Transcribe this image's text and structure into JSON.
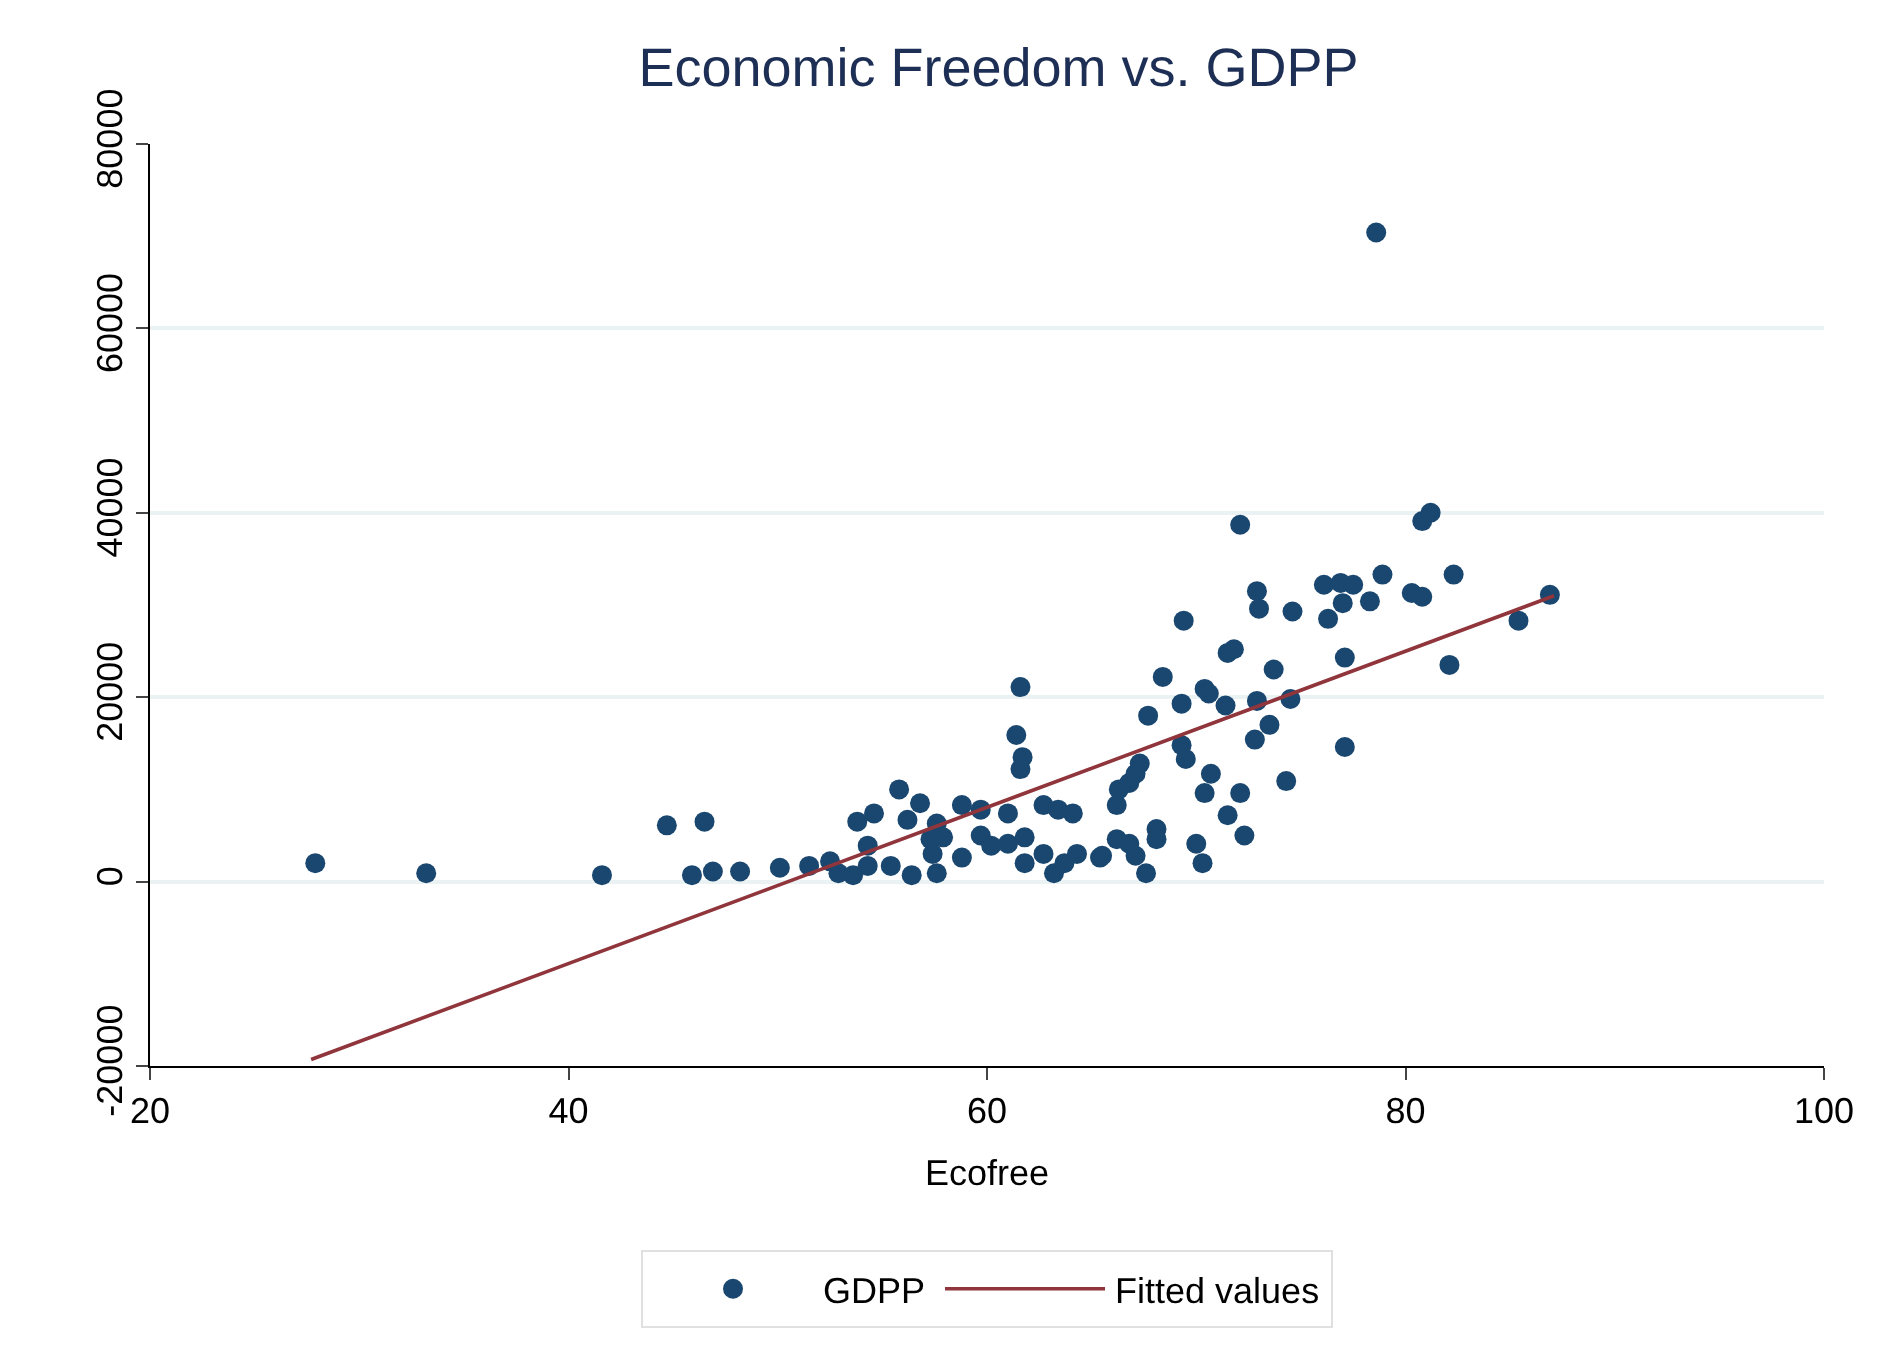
{
  "chart_data": {
    "type": "scatter",
    "title": "Economic Freedom vs. GDPP",
    "xlabel": "Ecofree",
    "xlim": [
      20,
      100
    ],
    "xticks": [
      20,
      40,
      60,
      80,
      100
    ],
    "ylim": [
      -20000,
      80000
    ],
    "yticks": [
      -20000,
      0,
      20000,
      40000,
      60000,
      80000
    ],
    "grid": "y",
    "legend": "bottom",
    "marker": "circle",
    "series": [
      {
        "name": "GDPP",
        "color": "#1a476f",
        "x": [
          27.9,
          33.2,
          41.6,
          44.7,
          46.5,
          45.9,
          46.9,
          48.2,
          50.1,
          51.5,
          52.5,
          52.9,
          53.6,
          54.3,
          53.8,
          54.6,
          55.8,
          55.4,
          54.3,
          56.4,
          57.6,
          56.8,
          56.2,
          57.6,
          57.9,
          57.3,
          57.4,
          58.8,
          59.7,
          61.0,
          62.7,
          63.4,
          64.1,
          59.7,
          60.2,
          61.0,
          61.8,
          58.8,
          61.8,
          62.7,
          63.2,
          63.7,
          64.3,
          65.4,
          66.2,
          66.8,
          67.1,
          67.6,
          68.1,
          68.1,
          70.0,
          70.3,
          61.6,
          61.4,
          61.7,
          61.6,
          66.2,
          66.3,
          66.8,
          67.1,
          67.3,
          67.7,
          68.4,
          69.3,
          70.4,
          71.4,
          69.3,
          69.5,
          69.4,
          70.6,
          70.7,
          70.4,
          72.1,
          71.5,
          72.3,
          74.3,
          72.8,
          73.5,
          74.5,
          73.7,
          72.9,
          77.1,
          77.1,
          71.5,
          71.8,
          72.1,
          72.9,
          73.0,
          74.6,
          76.1,
          76.9,
          77.5,
          77.0,
          76.3,
          78.3,
          78.9,
          80.3,
          80.8,
          82.3,
          80.8,
          81.2,
          82.1,
          85.4,
          86.9,
          78.6,
          65.5
        ],
        "values": [
          2000,
          900,
          700,
          6100,
          6500,
          700,
          1100,
          1100,
          1500,
          1700,
          2200,
          900,
          700,
          3900,
          6500,
          7400,
          10000,
          1700,
          1700,
          700,
          900,
          8500,
          6700,
          6300,
          4800,
          4600,
          3000,
          8300,
          7800,
          7400,
          8300,
          7800,
          7400,
          5000,
          3900,
          4100,
          4800,
          2600,
          2000,
          3000,
          900,
          2000,
          3000,
          2600,
          4600,
          4100,
          2800,
          900,
          5700,
          4600,
          4100,
          2000,
          21100,
          15900,
          13500,
          12200,
          8300,
          10000,
          10700,
          11700,
          12800,
          18000,
          22200,
          19300,
          20900,
          19100,
          14800,
          13300,
          28300,
          20400,
          11700,
          9600,
          9600,
          7200,
          5000,
          10900,
          15400,
          17000,
          19800,
          23000,
          19600,
          14600,
          24300,
          24800,
          25200,
          38700,
          31500,
          29600,
          29300,
          32200,
          32400,
          32200,
          30200,
          28500,
          30400,
          33300,
          31300,
          30900,
          33300,
          39100,
          40000,
          23500,
          28300,
          31100,
          70400,
          2800
        ]
      },
      {
        "name": "Fitted values",
        "type": "line",
        "color": "#90353b",
        "marker": "none",
        "line_style": "solid",
        "x": [
          27.7,
          87.1
        ],
        "values": [
          -19300,
          31000
        ]
      }
    ]
  }
}
